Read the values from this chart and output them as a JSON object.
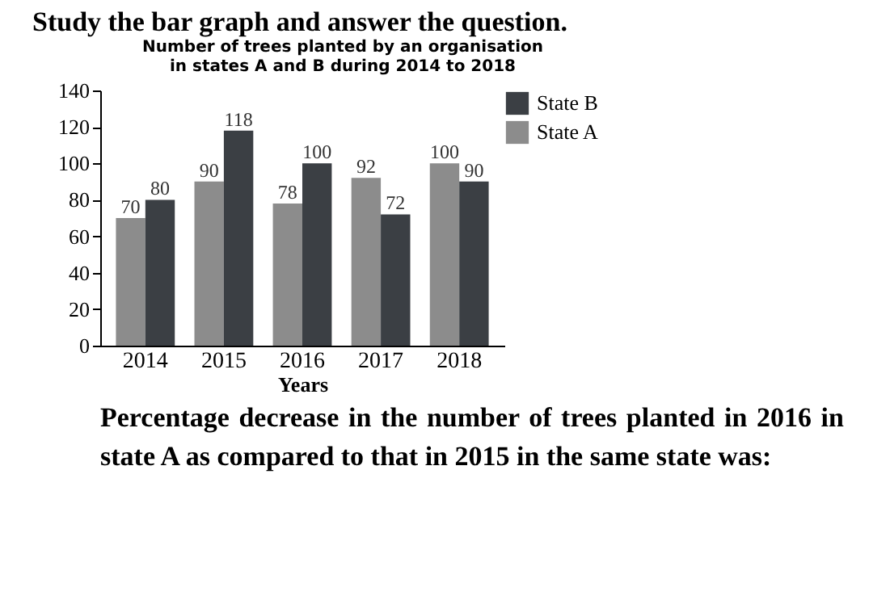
{
  "chart_data": {
    "type": "bar",
    "title": "Number  of trees planted by an organisation\nin states A and B during 2014 to 2018",
    "xlabel": "Years",
    "categories": [
      "2014",
      "2015",
      "2016",
      "2017",
      "2018"
    ],
    "series": [
      {
        "name": "State A",
        "color": "#8c8c8c",
        "values": [
          70,
          90,
          78,
          92,
          100
        ]
      },
      {
        "name": "State B",
        "color": "#3b3f44",
        "values": [
          80,
          118,
          100,
          72,
          90
        ]
      }
    ],
    "ylim": [
      0,
      140
    ],
    "yticks": [
      0,
      20,
      40,
      60,
      80,
      100,
      120,
      140
    ],
    "data_labels": true,
    "legend": "top right",
    "grid": false,
    "annotations": [
      "Study the bar graph and answer the question.",
      "Percentage decrease in the number of trees planted in 2016 in state A as compared to that in 2015 in the same state was:"
    ]
  }
}
